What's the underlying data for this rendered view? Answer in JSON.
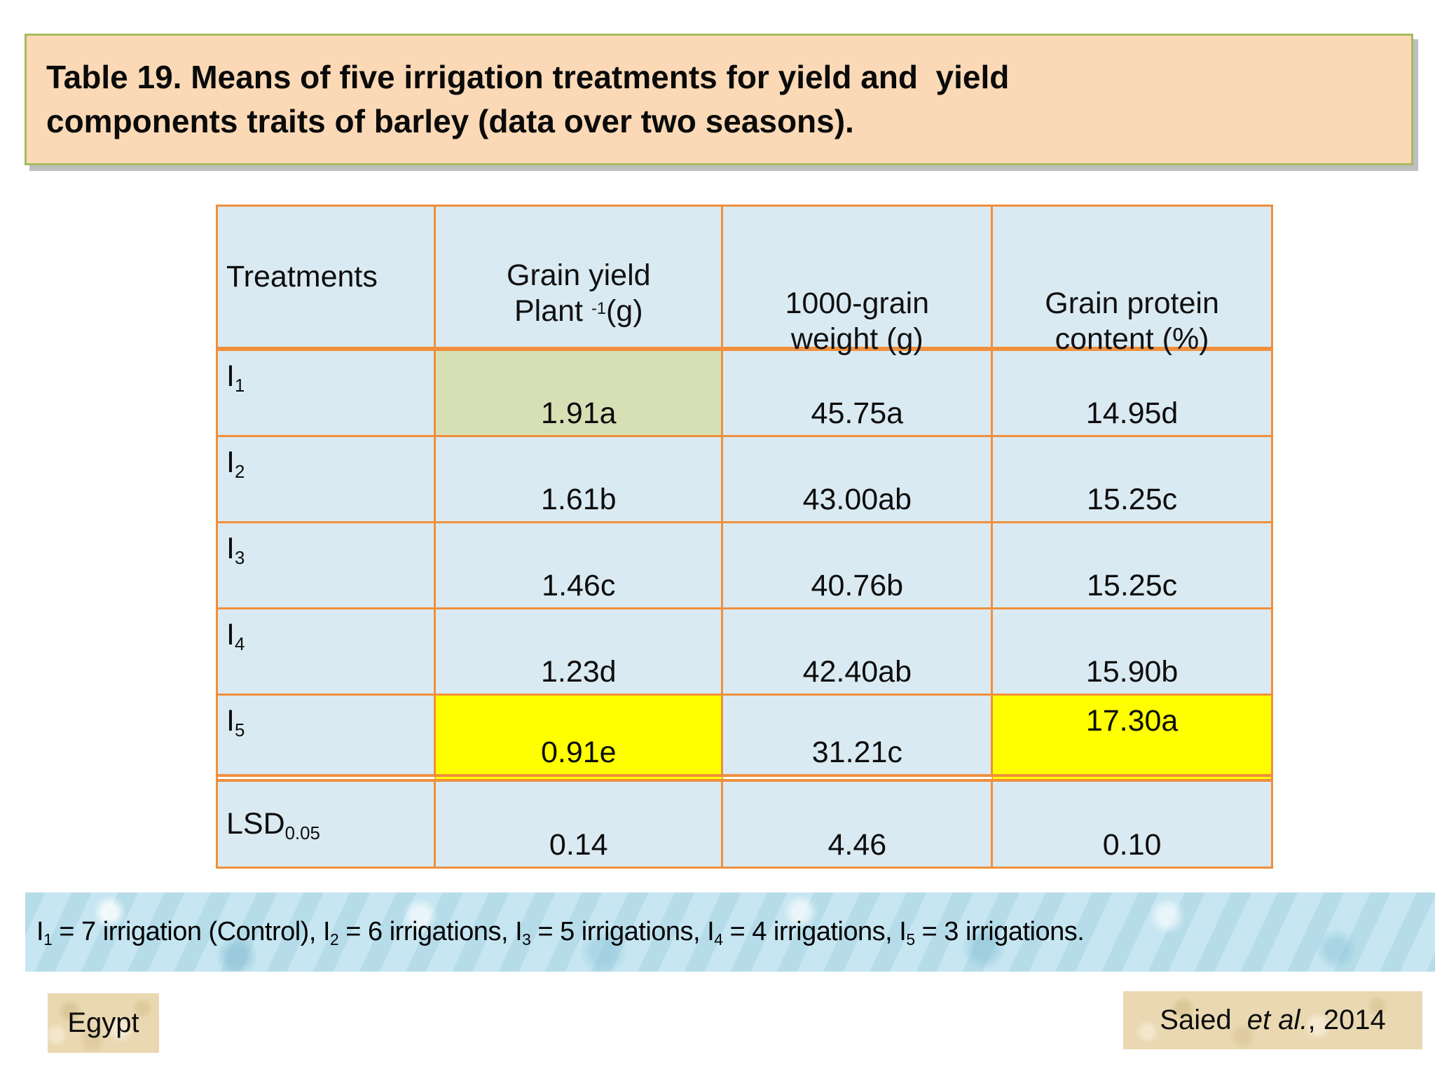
{
  "slide": {
    "title": "Table 19. Means of five irrigation treatments for yield and  yield\ncomponents traits of barley (data over two seasons)."
  },
  "table": {
    "header": {
      "treatments": "Treatments",
      "grain_yield": {
        "line1": "Grain yield",
        "line2_pre": "Plant ",
        "line2_sup": "-1",
        "line2_post": "(g)"
      },
      "grain_weight": {
        "line1": "1000-grain",
        "line2": "weight (g)"
      },
      "protein": {
        "line1": "Grain protein",
        "line2": "content (%)"
      }
    },
    "rows": [
      {
        "label": "I",
        "sub": "1",
        "grain_yield": "1.91a",
        "grain_weight": "45.75a",
        "protein": "14.95d"
      },
      {
        "label": "I",
        "sub": "2",
        "grain_yield": "1.61b",
        "grain_weight": "43.00ab",
        "protein": "15.25c"
      },
      {
        "label": "I",
        "sub": "3",
        "grain_yield": "1.46c",
        "grain_weight": "40.76b",
        "protein": "15.25c"
      },
      {
        "label": "I",
        "sub": "4",
        "grain_yield": "1.23d",
        "grain_weight": "42.40ab",
        "protein": "15.90b"
      },
      {
        "label": "I",
        "sub": "5",
        "grain_yield": "0.91e",
        "grain_weight": "31.21c",
        "protein": "17.30a"
      },
      {
        "label": "LSD",
        "sub": "0.05",
        "grain_yield": "0.14",
        "grain_weight": "4.46",
        "protein": "0.10"
      }
    ],
    "highlighted_cells": {
      "green": "I1 grain yield (1.91a)",
      "yellow": [
        "I5 grain yield (0.91e)",
        "I5 grain protein content (17.30a)"
      ]
    }
  },
  "footnote": {
    "segments": [
      {
        "base": "I",
        "sub": "1",
        "rest": " = 7 irrigation (Control), "
      },
      {
        "base": "I",
        "sub": "2",
        "rest": " = 6 irrigations, "
      },
      {
        "base": "I",
        "sub": "3",
        "rest": " = 5 irrigations, "
      },
      {
        "base": "I",
        "sub": "4",
        "rest": " = 4 irrigations, "
      },
      {
        "base": "I",
        "sub": "5",
        "rest": " = 3 irrigations."
      }
    ]
  },
  "labels": {
    "country": "Egypt"
  },
  "citation": {
    "pre": "Saied  ",
    "italic": "et al.",
    "post": ", 2014"
  },
  "colors": {
    "title_background": "#fbd9b6",
    "title_border": "#a6bb5e",
    "cell_blue": "#daeaf2",
    "highlight_green": "#d7e0b5",
    "highlight_yellow": "#ffff00",
    "table_border_orange": "#f08f3c",
    "footnote_background": "#bfe1ed",
    "label_background": "#e9d8b1",
    "text": "#0d0d0d"
  }
}
